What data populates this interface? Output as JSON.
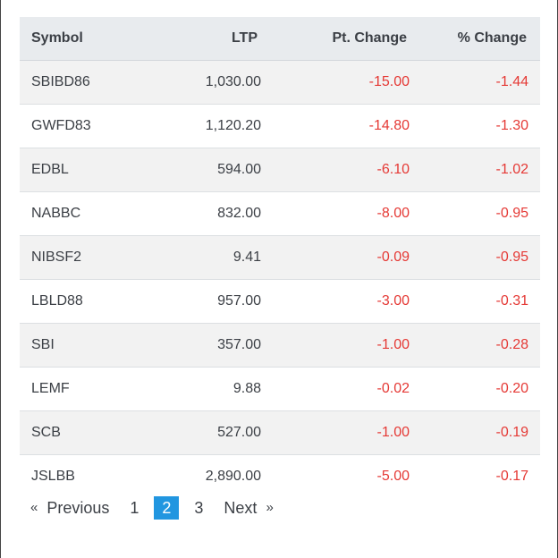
{
  "table": {
    "headers": {
      "symbol": "Symbol",
      "ltp": "LTP",
      "pt_change": "Pt. Change",
      "pct_change": "% Change"
    },
    "rows": [
      {
        "symbol": "SBIBD86",
        "ltp": "1,030.00",
        "pt_change": "-15.00",
        "pct_change": "-1.44"
      },
      {
        "symbol": "GWFD83",
        "ltp": "1,120.20",
        "pt_change": "-14.80",
        "pct_change": "-1.30"
      },
      {
        "symbol": "EDBL",
        "ltp": "594.00",
        "pt_change": "-6.10",
        "pct_change": "-1.02"
      },
      {
        "symbol": "NABBC",
        "ltp": "832.00",
        "pt_change": "-8.00",
        "pct_change": "-0.95"
      },
      {
        "symbol": "NIBSF2",
        "ltp": "9.41",
        "pt_change": "-0.09",
        "pct_change": "-0.95"
      },
      {
        "symbol": "LBLD88",
        "ltp": "957.00",
        "pt_change": "-3.00",
        "pct_change": "-0.31"
      },
      {
        "symbol": "SBI",
        "ltp": "357.00",
        "pt_change": "-1.00",
        "pct_change": "-0.28"
      },
      {
        "symbol": "LEMF",
        "ltp": "9.88",
        "pt_change": "-0.02",
        "pct_change": "-0.20"
      },
      {
        "symbol": "SCB",
        "ltp": "527.00",
        "pt_change": "-1.00",
        "pct_change": "-0.19"
      },
      {
        "symbol": "JSLBB",
        "ltp": "2,890.00",
        "pt_change": "-5.00",
        "pct_change": "-0.17"
      }
    ]
  },
  "pagination": {
    "prev_arrow": "«",
    "prev_label": "Previous",
    "pages": [
      "1",
      "2",
      "3"
    ],
    "active_page": "2",
    "next_label": "Next",
    "next_arrow": "»"
  },
  "colors": {
    "negative": "#e53935",
    "active_page_bg": "#2196e0",
    "header_bg": "#e8ebee"
  }
}
